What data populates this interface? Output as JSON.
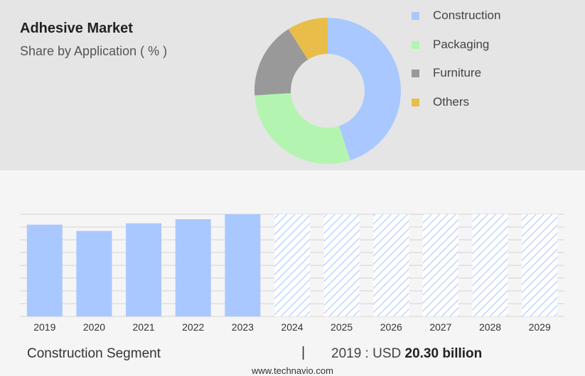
{
  "header": {
    "title": "Adhesive Market",
    "subtitle": "Share by Application ( % )"
  },
  "chart_data": [
    {
      "type": "pie",
      "title": "Adhesive Market",
      "subtitle": "Share by Application ( % )",
      "labels": [
        "Construction",
        "Packaging",
        "Furniture",
        "Others"
      ],
      "values": [
        45,
        29,
        17,
        9
      ],
      "colors": [
        "#a8c8ff",
        "#b3f5b0",
        "#999999",
        "#e8bd4a"
      ],
      "legend_position": "right"
    },
    {
      "type": "bar",
      "categories": [
        "2019",
        "2020",
        "2021",
        "2022",
        "2023",
        "2024",
        "2025",
        "2026",
        "2027",
        "2028",
        "2029"
      ],
      "values": [
        20.3,
        18.9,
        20.6,
        21.5,
        22.6,
        22.6,
        22.6,
        22.6,
        22.6,
        22.6,
        22.6
      ],
      "forecast_from_index": 5,
      "ylim": [
        0,
        22.6
      ],
      "y_axis_visible": false,
      "grid": true,
      "colors": {
        "actual": "#a8c8ff",
        "forecast_hatch": "#a8c8ff"
      }
    }
  ],
  "footer": {
    "segment": "Construction Segment",
    "separator": "|",
    "value_prefix": "2019 : USD",
    "value_bold": "20.30 billion",
    "source": "www.technavio.com"
  }
}
